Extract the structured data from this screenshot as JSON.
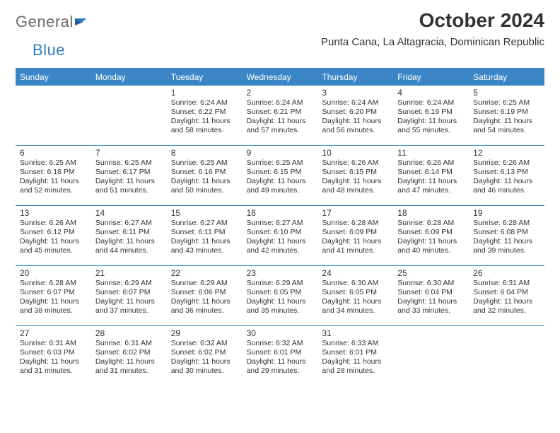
{
  "brand": {
    "word1": "General",
    "word2": "Blue"
  },
  "title": "October 2024",
  "subtitle": "Punta Cana, La Altagracia, Dominican Republic",
  "colors": {
    "header_bg": "#3b86c6",
    "header_fg": "#ffffff",
    "rule": "#3b86c6",
    "logo_gray": "#6b6b6b",
    "logo_blue": "#2f7ec0",
    "text": "#333333",
    "page_bg": "#ffffff"
  },
  "days_of_week": [
    "Sunday",
    "Monday",
    "Tuesday",
    "Wednesday",
    "Thursday",
    "Friday",
    "Saturday"
  ],
  "first_weekday_index": 2,
  "num_days": 31,
  "cells": {
    "1": {
      "sunrise": "6:24 AM",
      "sunset": "6:22 PM",
      "daylight": "11 hours and 58 minutes."
    },
    "2": {
      "sunrise": "6:24 AM",
      "sunset": "6:21 PM",
      "daylight": "11 hours and 57 minutes."
    },
    "3": {
      "sunrise": "6:24 AM",
      "sunset": "6:20 PM",
      "daylight": "11 hours and 56 minutes."
    },
    "4": {
      "sunrise": "6:24 AM",
      "sunset": "6:19 PM",
      "daylight": "11 hours and 55 minutes."
    },
    "5": {
      "sunrise": "6:25 AM",
      "sunset": "6:19 PM",
      "daylight": "11 hours and 54 minutes."
    },
    "6": {
      "sunrise": "6:25 AM",
      "sunset": "6:18 PM",
      "daylight": "11 hours and 52 minutes."
    },
    "7": {
      "sunrise": "6:25 AM",
      "sunset": "6:17 PM",
      "daylight": "11 hours and 51 minutes."
    },
    "8": {
      "sunrise": "6:25 AM",
      "sunset": "6:16 PM",
      "daylight": "11 hours and 50 minutes."
    },
    "9": {
      "sunrise": "6:25 AM",
      "sunset": "6:15 PM",
      "daylight": "11 hours and 49 minutes."
    },
    "10": {
      "sunrise": "6:26 AM",
      "sunset": "6:15 PM",
      "daylight": "11 hours and 48 minutes."
    },
    "11": {
      "sunrise": "6:26 AM",
      "sunset": "6:14 PM",
      "daylight": "11 hours and 47 minutes."
    },
    "12": {
      "sunrise": "6:26 AM",
      "sunset": "6:13 PM",
      "daylight": "11 hours and 46 minutes."
    },
    "13": {
      "sunrise": "6:26 AM",
      "sunset": "6:12 PM",
      "daylight": "11 hours and 45 minutes."
    },
    "14": {
      "sunrise": "6:27 AM",
      "sunset": "6:11 PM",
      "daylight": "11 hours and 44 minutes."
    },
    "15": {
      "sunrise": "6:27 AM",
      "sunset": "6:11 PM",
      "daylight": "11 hours and 43 minutes."
    },
    "16": {
      "sunrise": "6:27 AM",
      "sunset": "6:10 PM",
      "daylight": "11 hours and 42 minutes."
    },
    "17": {
      "sunrise": "6:28 AM",
      "sunset": "6:09 PM",
      "daylight": "11 hours and 41 minutes."
    },
    "18": {
      "sunrise": "6:28 AM",
      "sunset": "6:09 PM",
      "daylight": "11 hours and 40 minutes."
    },
    "19": {
      "sunrise": "6:28 AM",
      "sunset": "6:08 PM",
      "daylight": "11 hours and 39 minutes."
    },
    "20": {
      "sunrise": "6:28 AM",
      "sunset": "6:07 PM",
      "daylight": "11 hours and 38 minutes."
    },
    "21": {
      "sunrise": "6:29 AM",
      "sunset": "6:07 PM",
      "daylight": "11 hours and 37 minutes."
    },
    "22": {
      "sunrise": "6:29 AM",
      "sunset": "6:06 PM",
      "daylight": "11 hours and 36 minutes."
    },
    "23": {
      "sunrise": "6:29 AM",
      "sunset": "6:05 PM",
      "daylight": "11 hours and 35 minutes."
    },
    "24": {
      "sunrise": "6:30 AM",
      "sunset": "6:05 PM",
      "daylight": "11 hours and 34 minutes."
    },
    "25": {
      "sunrise": "6:30 AM",
      "sunset": "6:04 PM",
      "daylight": "11 hours and 33 minutes."
    },
    "26": {
      "sunrise": "6:31 AM",
      "sunset": "6:04 PM",
      "daylight": "11 hours and 32 minutes."
    },
    "27": {
      "sunrise": "6:31 AM",
      "sunset": "6:03 PM",
      "daylight": "11 hours and 31 minutes."
    },
    "28": {
      "sunrise": "6:31 AM",
      "sunset": "6:02 PM",
      "daylight": "11 hours and 31 minutes."
    },
    "29": {
      "sunrise": "6:32 AM",
      "sunset": "6:02 PM",
      "daylight": "11 hours and 30 minutes."
    },
    "30": {
      "sunrise": "6:32 AM",
      "sunset": "6:01 PM",
      "daylight": "11 hours and 29 minutes."
    },
    "31": {
      "sunrise": "6:33 AM",
      "sunset": "6:01 PM",
      "daylight": "11 hours and 28 minutes."
    }
  },
  "labels": {
    "sunrise_prefix": "Sunrise: ",
    "sunset_prefix": "Sunset: ",
    "daylight_prefix": "Daylight: "
  }
}
